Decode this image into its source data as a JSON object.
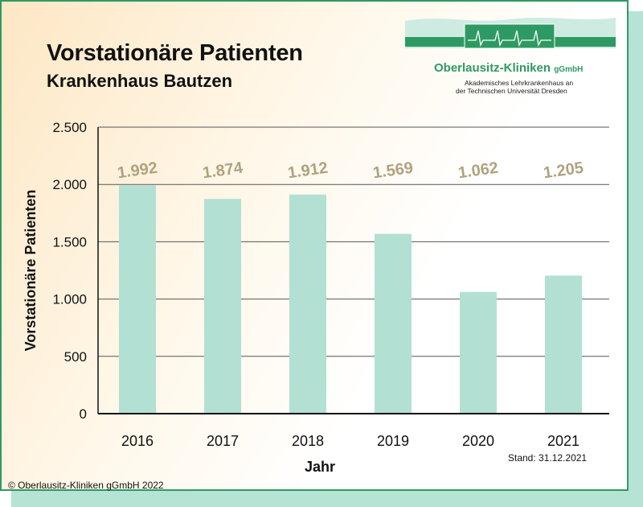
{
  "header": {
    "title": "Vorstationäre Patienten",
    "subtitle": "Krankenhaus Bautzen"
  },
  "logo": {
    "name": "Oberlausitz-Kliniken",
    "suffix": "gGmbH",
    "line1": "Akademisches Lehrkrankenhaus an",
    "line2": "der Technischen Universität Dresden",
    "color": "#2e9a63"
  },
  "chart_data": {
    "type": "bar",
    "categories": [
      "2016",
      "2017",
      "2018",
      "2019",
      "2020",
      "2021"
    ],
    "values": [
      1992,
      1874,
      1912,
      1569,
      1062,
      1205
    ],
    "data_labels": [
      "1.992",
      "1.874",
      "1.912",
      "1.569",
      "1.062",
      "1.205"
    ],
    "ylim": [
      0,
      2500
    ],
    "yticks": [
      0,
      500,
      1000,
      1500,
      2000,
      2500
    ],
    "ytick_labels": [
      "0",
      "500",
      "1.000",
      "1.500",
      "2.000",
      "2.500"
    ],
    "xlabel": "Jahr",
    "ylabel": "Vorstationäre Patienten",
    "grid": true,
    "bar_color": "#b2e0d3",
    "label_color": "#b0a27e"
  },
  "footer": {
    "stand": "Stand: 31.12.2021",
    "copyright": "© Oberlausitz-Kliniken gGmbH 2022"
  }
}
